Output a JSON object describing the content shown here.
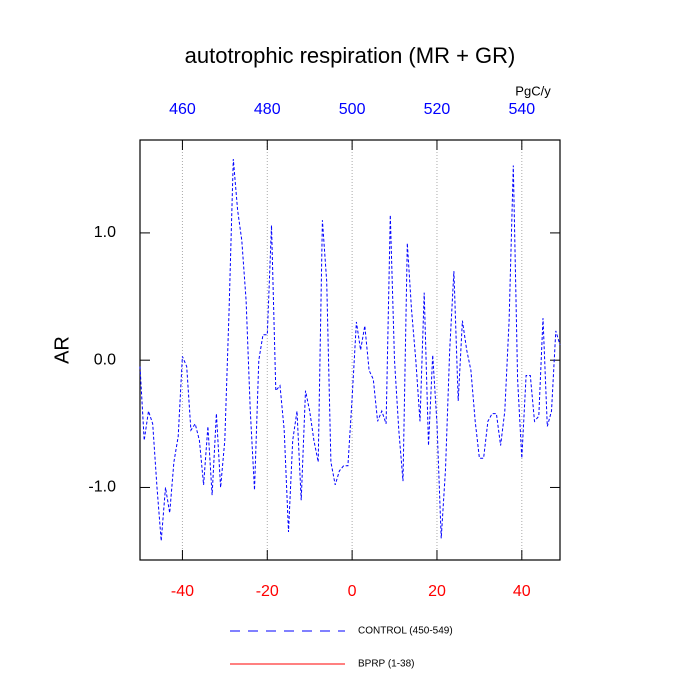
{
  "chart_data": {
    "type": "line",
    "title": "autotrophic respiration (MR + GR)",
    "x2_units": "PgC/y",
    "ylabel": "AR",
    "xlim": [
      -50,
      49
    ],
    "xticks": [
      -40,
      -20,
      0,
      20,
      40
    ],
    "xtick_color": "#ff0000",
    "x2lim": [
      450,
      549
    ],
    "x2ticks": [
      460,
      480,
      500,
      520,
      540
    ],
    "x2tick_color": "#0000ff",
    "ylim": [
      -1.57,
      1.73
    ],
    "yticks": [
      {
        "value": -1,
        "label": "-1.0"
      },
      {
        "value": 0,
        "label": "0.0"
      },
      {
        "value": 1,
        "label": "1.0"
      }
    ],
    "grid": true,
    "series": [
      {
        "name": "CONTROL (450-549)",
        "color": "#0000ff",
        "dashed": true,
        "x": [
          -50,
          -49,
          -48,
          -47,
          -46,
          -45,
          -44,
          -43,
          -42,
          -41,
          -40,
          -39,
          -38,
          -37,
          -36,
          -35,
          -34,
          -33,
          -32,
          -31,
          -30,
          -29,
          -28,
          -27,
          -26,
          -25,
          -24,
          -23,
          -22,
          -21,
          -20,
          -19,
          -18,
          -17,
          -16,
          -15,
          -14,
          -13,
          -12,
          -11,
          -10,
          -9,
          -8,
          -7,
          -6,
          -5,
          -4,
          -3,
          -2,
          -1,
          0,
          1,
          2,
          3,
          4,
          5,
          6,
          7,
          8,
          9,
          10,
          11,
          12,
          13,
          14,
          15,
          16,
          17,
          18,
          19,
          20,
          21,
          22,
          23,
          24,
          25,
          26,
          27,
          28,
          29,
          30,
          31,
          32,
          33,
          34,
          35,
          36,
          37,
          38,
          39,
          40,
          41,
          42,
          43,
          44,
          45,
          46,
          47,
          48,
          49
        ],
        "values": [
          -0.05,
          -0.63,
          -0.4,
          -0.5,
          -1.0,
          -1.42,
          -1.0,
          -1.2,
          -0.8,
          -0.6,
          0.03,
          -0.05,
          -0.55,
          -0.5,
          -0.63,
          -0.98,
          -0.52,
          -1.06,
          -0.42,
          -1.0,
          -0.63,
          0.4,
          1.58,
          1.18,
          0.94,
          0.47,
          -0.4,
          -1.02,
          0,
          0.2,
          0.2,
          1.06,
          -0.24,
          -0.2,
          -0.55,
          -1.35,
          -0.63,
          -0.4,
          -1.1,
          -0.24,
          -0.4,
          -0.63,
          -0.8,
          1.1,
          0.62,
          -0.8,
          -0.98,
          -0.87,
          -0.83,
          -0.83,
          -0.3,
          0.3,
          0.08,
          0.27,
          -0.08,
          -0.15,
          -0.48,
          -0.4,
          -0.5,
          1.14,
          0,
          -0.55,
          -0.95,
          0.92,
          0.4,
          0,
          -0.48,
          0.53,
          -0.67,
          0.04,
          -0.5,
          -1.4,
          -0.86,
          0.08,
          0.7,
          -0.32,
          0.31,
          0.08,
          -0.08,
          -0.48,
          -0.77,
          -0.77,
          -0.48,
          -0.42,
          -0.42,
          -0.67,
          -0.4,
          0.31,
          1.53,
          -0.15,
          -0.77,
          -0.12,
          -0.12,
          -0.48,
          -0.44,
          0.33,
          -0.52,
          -0.4,
          0.23,
          0.12
        ]
      },
      {
        "name": "BPRP (1-38)",
        "color": "#ff0000",
        "dashed": false,
        "x": [],
        "values": []
      }
    ]
  }
}
